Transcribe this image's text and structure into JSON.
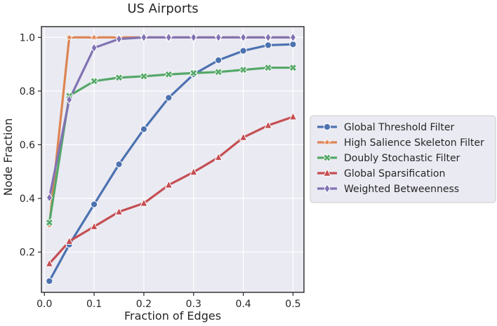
{
  "chart_data": {
    "type": "line",
    "title": "US Airports",
    "xlabel": "Fraction of Edges",
    "ylabel": "Node Fraction",
    "xlim": [
      -0.006,
      0.522
    ],
    "ylim": [
      0.05,
      1.04
    ],
    "xticks": [
      0.0,
      0.1,
      0.2,
      0.3,
      0.4,
      0.5
    ],
    "xtick_labels": [
      "0.0",
      "0.1",
      "0.2",
      "0.3",
      "0.4",
      "0.5"
    ],
    "yticks": [
      0.2,
      0.4,
      0.6,
      0.8,
      1.0
    ],
    "ytick_labels": [
      "0.2",
      "0.4",
      "0.6",
      "0.8",
      "1.0"
    ],
    "grid": true,
    "background": "#EAEAF2",
    "legend_position": "right-outside",
    "series": [
      {
        "name": "Global Threshold Filter",
        "color": "#4C72B0",
        "marker": "circle",
        "x": [
          0.01,
          0.05,
          0.1,
          0.15,
          0.2,
          0.25,
          0.3,
          0.35,
          0.4,
          0.45,
          0.5
        ],
        "y": [
          0.092,
          0.228,
          0.378,
          0.527,
          0.658,
          0.775,
          0.862,
          0.915,
          0.95,
          0.971,
          0.974
        ]
      },
      {
        "name": "High Salience Skeleton Filter",
        "color": "#DD8452",
        "marker": "star",
        "x": [
          0.01,
          0.05,
          0.1,
          0.15,
          0.2,
          0.25,
          0.3,
          0.35,
          0.4,
          0.45,
          0.5
        ],
        "y": [
          0.3,
          1.0,
          1.0,
          1.0,
          1.0,
          1.0,
          1.0,
          1.0,
          1.0,
          1.0,
          1.0
        ]
      },
      {
        "name": "Doubly Stochastic Filter",
        "color": "#55A868",
        "marker": "x",
        "x": [
          0.01,
          0.05,
          0.1,
          0.15,
          0.2,
          0.25,
          0.3,
          0.35,
          0.4,
          0.45,
          0.5
        ],
        "y": [
          0.31,
          0.782,
          0.837,
          0.85,
          0.855,
          0.862,
          0.867,
          0.871,
          0.879,
          0.887,
          0.887
        ]
      },
      {
        "name": "Global Sparsification",
        "color": "#C44E52",
        "marker": "triangle",
        "x": [
          0.01,
          0.05,
          0.1,
          0.15,
          0.2,
          0.25,
          0.3,
          0.35,
          0.4,
          0.45,
          0.5
        ],
        "y": [
          0.157,
          0.24,
          0.295,
          0.35,
          0.382,
          0.45,
          0.498,
          0.553,
          0.627,
          0.672,
          0.704
        ]
      },
      {
        "name": "Weighted Betweenness",
        "color": "#8172B3",
        "marker": "diamond",
        "x": [
          0.01,
          0.05,
          0.1,
          0.15,
          0.2,
          0.25,
          0.3,
          0.35,
          0.4,
          0.45,
          0.5
        ],
        "y": [
          0.403,
          0.768,
          0.961,
          0.994,
          1.0,
          1.0,
          1.0,
          1.0,
          1.0,
          1.0,
          1.0
        ]
      }
    ]
  }
}
